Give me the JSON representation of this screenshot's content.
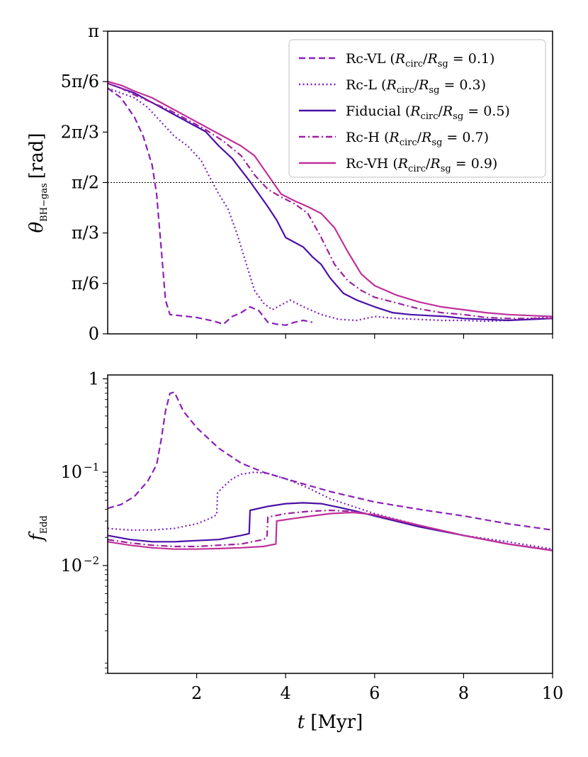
{
  "chart_data": [
    {
      "type": "line",
      "panel": "top",
      "ylabel": "θ_BH−gas [rad]",
      "ylabel_main": "θ",
      "ylabel_sub": "BH−gas",
      "ylabel_unit": "[rad]",
      "xlim": [
        0,
        10
      ],
      "ylim": [
        0,
        3.14159
      ],
      "x_ticks": [
        2,
        4,
        6,
        8,
        10
      ],
      "y_ticks": [
        {
          "value": 0,
          "label": "0"
        },
        {
          "value": 0.5236,
          "label": "π/6"
        },
        {
          "value": 1.0472,
          "label": "π/3"
        },
        {
          "value": 1.5708,
          "label": "π/2"
        },
        {
          "value": 2.0944,
          "label": "2π/3"
        },
        {
          "value": 2.618,
          "label": "5π/6"
        },
        {
          "value": 3.1416,
          "label": "π"
        }
      ],
      "hline": 1.5708,
      "legend_position": "top-right",
      "series": [
        {
          "name": "Rc-VL",
          "ratio_label": "(R_circ/R_sg = 0.1)",
          "ratio_value": "0.1",
          "style": "dashed",
          "x": [
            0,
            0.3,
            0.6,
            0.8,
            1.0,
            1.1,
            1.2,
            1.3,
            1.4,
            1.6,
            1.8,
            2.0,
            2.2,
            2.4,
            2.6,
            2.8,
            3.0,
            3.2,
            3.4,
            3.6,
            3.8,
            4.0,
            4.2,
            4.4,
            4.6
          ],
          "values": [
            2.55,
            2.45,
            2.25,
            2.05,
            1.75,
            1.45,
            0.9,
            0.35,
            0.2,
            0.19,
            0.18,
            0.17,
            0.15,
            0.13,
            0.1,
            0.18,
            0.22,
            0.28,
            0.24,
            0.12,
            0.1,
            0.09,
            0.12,
            0.14,
            0.12
          ]
        },
        {
          "name": "Rc-L",
          "ratio_label": "(R_circ/R_sg = 0.3)",
          "ratio_value": "0.3",
          "style": "dotted",
          "x": [
            0,
            0.3,
            0.6,
            0.9,
            1.2,
            1.5,
            1.8,
            2.1,
            2.3,
            2.5,
            2.7,
            2.9,
            3.1,
            3.3,
            3.5,
            3.7,
            3.9,
            4.1,
            4.4,
            4.8,
            5.2,
            5.6,
            6.0,
            6.5,
            7.0,
            7.5,
            8.0,
            8.5,
            9.0,
            9.5,
            10.0
          ],
          "values": [
            2.55,
            2.5,
            2.45,
            2.35,
            2.2,
            2.05,
            1.95,
            1.8,
            1.62,
            1.45,
            1.3,
            1.05,
            0.75,
            0.45,
            0.32,
            0.25,
            0.3,
            0.35,
            0.28,
            0.2,
            0.15,
            0.14,
            0.18,
            0.16,
            0.15,
            0.14,
            0.14,
            0.13,
            0.14,
            0.16,
            0.18
          ]
        },
        {
          "name": "Fiducial",
          "ratio_label": "(R_circ/R_sg = 0.5)",
          "ratio_value": "0.5",
          "style": "solid",
          "x": [
            0,
            0.3,
            0.6,
            1.0,
            1.4,
            1.8,
            2.2,
            2.5,
            2.8,
            3.0,
            3.2,
            3.4,
            3.6,
            3.8,
            4.0,
            4.2,
            4.4,
            4.6,
            4.8,
            5.0,
            5.3,
            5.6,
            6.0,
            6.4,
            6.8,
            7.2,
            7.6,
            8.0,
            8.5,
            9.0,
            9.5,
            10.0
          ],
          "values": [
            2.6,
            2.55,
            2.5,
            2.4,
            2.3,
            2.2,
            2.1,
            1.95,
            1.82,
            1.7,
            1.58,
            1.45,
            1.32,
            1.18,
            1.0,
            0.95,
            0.9,
            0.8,
            0.72,
            0.58,
            0.42,
            0.35,
            0.28,
            0.22,
            0.2,
            0.19,
            0.18,
            0.16,
            0.15,
            0.14,
            0.15,
            0.16
          ]
        },
        {
          "name": "Rc-H",
          "ratio_label": "(R_circ/R_sg = 0.7)",
          "ratio_value": "0.7",
          "style": "dashdot",
          "x": [
            0,
            0.3,
            0.6,
            1.0,
            1.4,
            1.8,
            2.2,
            2.6,
            3.0,
            3.3,
            3.6,
            3.9,
            4.2,
            4.5,
            4.8,
            5.1,
            5.4,
            5.7,
            6.0,
            6.5,
            7.0,
            7.5,
            8.0,
            8.5,
            9.0,
            9.5,
            10.0
          ],
          "values": [
            2.6,
            2.55,
            2.48,
            2.4,
            2.32,
            2.22,
            2.12,
            2.0,
            1.85,
            1.65,
            1.5,
            1.42,
            1.35,
            1.25,
            1.0,
            0.72,
            0.55,
            0.45,
            0.38,
            0.32,
            0.26,
            0.22,
            0.2,
            0.17,
            0.16,
            0.16,
            0.16
          ]
        },
        {
          "name": "Rc-VH",
          "ratio_label": "(R_circ/R_sg = 0.9)",
          "ratio_value": "0.9",
          "style": "solid",
          "x": [
            0,
            0.3,
            0.6,
            1.0,
            1.4,
            1.8,
            2.2,
            2.6,
            3.0,
            3.3,
            3.6,
            3.9,
            4.2,
            4.5,
            4.8,
            5.1,
            5.4,
            5.7,
            6.0,
            6.5,
            7.0,
            7.5,
            8.0,
            8.5,
            9.0,
            9.5,
            10.0
          ],
          "values": [
            2.62,
            2.58,
            2.52,
            2.45,
            2.35,
            2.25,
            2.15,
            2.05,
            1.95,
            1.85,
            1.65,
            1.45,
            1.38,
            1.32,
            1.25,
            1.1,
            0.85,
            0.62,
            0.5,
            0.4,
            0.33,
            0.28,
            0.25,
            0.22,
            0.2,
            0.19,
            0.18
          ]
        }
      ]
    },
    {
      "type": "line",
      "panel": "bottom",
      "ylabel": "f_Edd",
      "ylabel_main": "f",
      "ylabel_sub": "Edd",
      "xlabel": "t [Myr]",
      "xlabel_main": "t",
      "xlabel_unit": "[Myr]",
      "yscale": "log",
      "xlim": [
        0,
        10
      ],
      "ylim": [
        0.0007,
        1.1
      ],
      "x_ticks": [
        2,
        4,
        6,
        8,
        10
      ],
      "y_ticks": [
        {
          "value": 1,
          "label": "1",
          "mant": "1",
          "exp": ""
        },
        {
          "value": 0.1,
          "label": "10^-1",
          "mant": "10",
          "exp": "−1"
        },
        {
          "value": 0.01,
          "label": "10^-2",
          "mant": "10",
          "exp": "−2"
        }
      ],
      "series": [
        {
          "name": "Rc-VL",
          "style": "dashed",
          "x": [
            0,
            0.3,
            0.6,
            0.9,
            1.1,
            1.2,
            1.3,
            1.4,
            1.5,
            1.7,
            2.0,
            2.5,
            3.0,
            3.5,
            4.0,
            5.0,
            6.0,
            7.0,
            8.0,
            9.0,
            10.0
          ],
          "values": [
            0.041,
            0.045,
            0.055,
            0.08,
            0.12,
            0.22,
            0.45,
            0.7,
            0.72,
            0.45,
            0.3,
            0.18,
            0.125,
            0.1,
            0.085,
            0.062,
            0.048,
            0.04,
            0.034,
            0.028,
            0.024
          ]
        },
        {
          "name": "Rc-L",
          "style": "dotted",
          "x": [
            0,
            0.5,
            1.0,
            1.5,
            2.0,
            2.3,
            2.45,
            2.47,
            2.6,
            2.8,
            3.0,
            3.3,
            3.6,
            4.0,
            4.5,
            5.0,
            6.0,
            7.0,
            8.0,
            9.0,
            10.0
          ],
          "values": [
            0.025,
            0.024,
            0.024,
            0.025,
            0.028,
            0.032,
            0.035,
            0.06,
            0.07,
            0.085,
            0.095,
            0.1,
            0.097,
            0.085,
            0.068,
            0.052,
            0.036,
            0.027,
            0.021,
            0.018,
            0.015
          ]
        },
        {
          "name": "Fiducial",
          "style": "solid",
          "x": [
            0,
            0.5,
            1.0,
            1.5,
            2.0,
            2.5,
            3.0,
            3.18,
            3.2,
            3.6,
            4.0,
            4.4,
            4.8,
            5.2,
            5.6,
            6.0,
            7.0,
            8.0,
            9.0,
            10.0
          ],
          "values": [
            0.021,
            0.019,
            0.018,
            0.018,
            0.0185,
            0.019,
            0.021,
            0.022,
            0.039,
            0.043,
            0.046,
            0.047,
            0.046,
            0.042,
            0.038,
            0.034,
            0.026,
            0.021,
            0.017,
            0.0145
          ]
        },
        {
          "name": "Rc-H",
          "style": "dashdot",
          "x": [
            0,
            0.5,
            1.0,
            1.5,
            2.0,
            2.5,
            3.0,
            3.5,
            3.58,
            3.6,
            4.0,
            4.5,
            5.0,
            5.5,
            6.0,
            7.0,
            8.0,
            9.0,
            10.0
          ],
          "values": [
            0.019,
            0.0175,
            0.0165,
            0.016,
            0.016,
            0.0165,
            0.017,
            0.019,
            0.02,
            0.033,
            0.036,
            0.038,
            0.039,
            0.038,
            0.035,
            0.027,
            0.021,
            0.017,
            0.0145
          ]
        },
        {
          "name": "Rc-VH",
          "style": "solid",
          "x": [
            0,
            0.5,
            1.0,
            1.5,
            2.0,
            2.5,
            3.0,
            3.5,
            3.78,
            3.8,
            4.2,
            4.6,
            5.0,
            5.5,
            6.0,
            7.0,
            8.0,
            9.0,
            10.0
          ],
          "values": [
            0.018,
            0.0165,
            0.0155,
            0.015,
            0.015,
            0.0152,
            0.0155,
            0.016,
            0.017,
            0.03,
            0.032,
            0.034,
            0.036,
            0.037,
            0.035,
            0.027,
            0.021,
            0.017,
            0.0145
          ]
        }
      ]
    }
  ],
  "colors": {
    "Rc-VL": "#8a1fb8",
    "Rc-L": "#7d1fc4",
    "Fiducial": "#4a10a8",
    "Rc-H": "#a01e9e",
    "Rc-VH": "#c0309a"
  }
}
